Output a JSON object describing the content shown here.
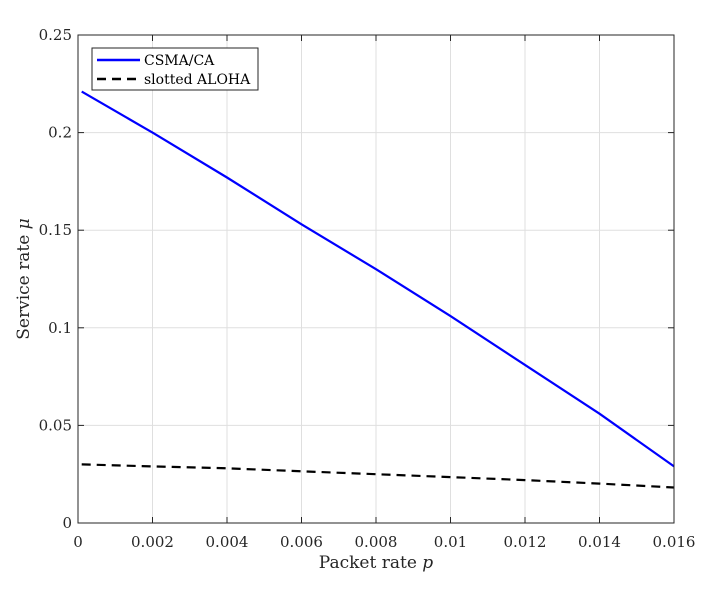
{
  "chart_data": {
    "type": "line",
    "xlabel_text": "Packet rate",
    "xlabel_symbol": "p",
    "ylabel_text": "Service rate",
    "ylabel_symbol": "μ",
    "xlim": [
      0,
      0.016
    ],
    "ylim": [
      0,
      0.25
    ],
    "x_ticks": [
      0,
      0.002,
      0.004,
      0.006,
      0.008,
      0.01,
      0.012,
      0.014,
      0.016
    ],
    "x_tick_labels": [
      "0",
      "0.002",
      "0.004",
      "0.006",
      "0.008",
      "0.01",
      "0.012",
      "0.014",
      "0.016"
    ],
    "y_ticks": [
      0,
      0.05,
      0.1,
      0.15,
      0.2,
      0.25
    ],
    "y_tick_labels": [
      "0",
      "0.05",
      "0.1",
      "0.15",
      "0.2",
      "0.25"
    ],
    "grid": true,
    "legend_position": "top-left",
    "series": [
      {
        "name": "CSMA/CA",
        "color": "#0000ff",
        "style": "solid",
        "x": [
          0.0001,
          0.002,
          0.004,
          0.006,
          0.008,
          0.01,
          0.012,
          0.014,
          0.016
        ],
        "y": [
          0.221,
          0.2,
          0.177,
          0.153,
          0.13,
          0.106,
          0.081,
          0.056,
          0.029
        ]
      },
      {
        "name": "slotted ALOHA",
        "color": "#000000",
        "style": "dashed",
        "x": [
          0.0001,
          0.002,
          0.004,
          0.006,
          0.008,
          0.01,
          0.012,
          0.014,
          0.016
        ],
        "y": [
          0.03,
          0.029,
          0.028,
          0.0265,
          0.025,
          0.0235,
          0.022,
          0.0202,
          0.0182
        ]
      }
    ]
  }
}
